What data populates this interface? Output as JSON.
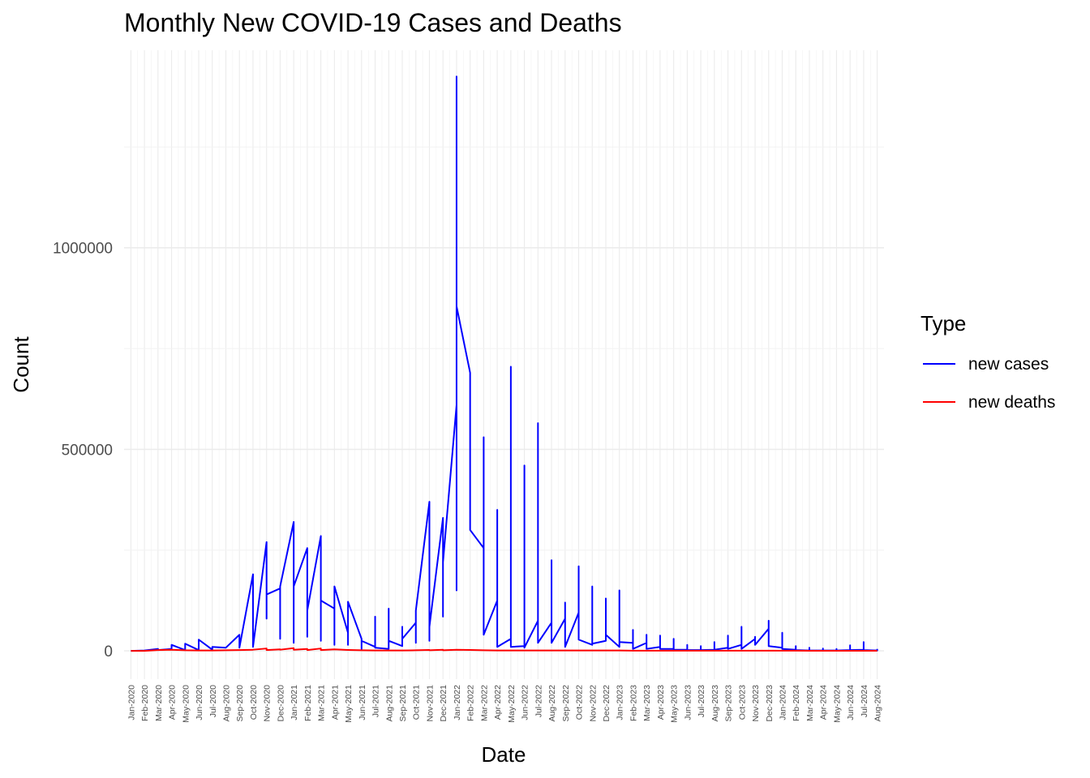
{
  "chart_data": {
    "type": "line",
    "title": "Monthly New COVID-19 Cases and Deaths",
    "xlabel": "Date",
    "ylabel": "Count",
    "ylim": [
      -70000,
      1490000
    ],
    "yticks": [
      0,
      500000,
      1000000
    ],
    "ytick_labels": [
      "0",
      "500000",
      "1000000"
    ],
    "grid": true,
    "legend": {
      "title": "Type",
      "placement": "right"
    },
    "categories": [
      "Jan-2020",
      "Feb-2020",
      "Mar-2020",
      "Apr-2020",
      "May-2020",
      "Jun-2020",
      "Jul-2020",
      "Aug-2020",
      "Sep-2020",
      "Oct-2020",
      "Nov-2020",
      "Dec-2020",
      "Jan-2021",
      "Feb-2021",
      "Mar-2021",
      "Apr-2021",
      "May-2021",
      "Jun-2021",
      "Jul-2021",
      "Aug-2021",
      "Sep-2021",
      "Oct-2021",
      "Nov-2021",
      "Dec-2021",
      "Jan-2022",
      "Feb-2022",
      "Mar-2022",
      "Apr-2022",
      "May-2022",
      "Jun-2022",
      "Jul-2022",
      "Aug-2022",
      "Sep-2022",
      "Oct-2022",
      "Nov-2022",
      "Dec-2022",
      "Jan-2023",
      "Feb-2023",
      "Mar-2023",
      "Apr-2023",
      "May-2023",
      "Jun-2023",
      "Jul-2023",
      "Aug-2023",
      "Sep-2023",
      "Oct-2023",
      "Nov-2023",
      "Dec-2023",
      "Jan-2024",
      "Feb-2024",
      "Mar-2024",
      "Apr-2024",
      "May-2024",
      "Jun-2024",
      "Jul-2024",
      "Aug-2024"
    ],
    "series": [
      {
        "name": "new cases",
        "color": "#0000ff",
        "points": [
          [
            "Jan-2020",
            0
          ],
          [
            "Feb-2020",
            1000
          ],
          [
            "Mar-2020",
            5000
          ],
          [
            "Mar-2020",
            2000
          ],
          [
            "Apr-2020",
            5000
          ],
          [
            "Apr-2020",
            15000
          ],
          [
            "May-2020",
            2000
          ],
          [
            "May-2020",
            18000
          ],
          [
            "Jun-2020",
            2000
          ],
          [
            "Jun-2020",
            28000
          ],
          [
            "Jul-2020",
            3000
          ],
          [
            "Jul-2020",
            10000
          ],
          [
            "Aug-2020",
            8000
          ],
          [
            "Sep-2020",
            40000
          ],
          [
            "Sep-2020",
            8000
          ],
          [
            "Oct-2020",
            190000
          ],
          [
            "Oct-2020",
            10000
          ],
          [
            "Nov-2020",
            270000
          ],
          [
            "Nov-2020",
            80000
          ],
          [
            "Nov-2020",
            140000
          ],
          [
            "Dec-2020",
            155000
          ],
          [
            "Dec-2020",
            30000
          ],
          [
            "Dec-2020",
            160000
          ],
          [
            "Jan-2021",
            320000
          ],
          [
            "Jan-2021",
            20000
          ],
          [
            "Jan-2021",
            160000
          ],
          [
            "Feb-2021",
            255000
          ],
          [
            "Feb-2021",
            35000
          ],
          [
            "Feb-2021",
            100000
          ],
          [
            "Mar-2021",
            285000
          ],
          [
            "Mar-2021",
            25000
          ],
          [
            "Mar-2021",
            125000
          ],
          [
            "Apr-2021",
            105000
          ],
          [
            "Apr-2021",
            15000
          ],
          [
            "Apr-2021",
            160000
          ],
          [
            "May-2021",
            45000
          ],
          [
            "May-2021",
            15000
          ],
          [
            "May-2021",
            122000
          ],
          [
            "Jun-2021",
            30000
          ],
          [
            "Jun-2021",
            5000
          ],
          [
            "Jun-2021",
            25000
          ],
          [
            "Jul-2021",
            10000
          ],
          [
            "Jul-2021",
            85000
          ],
          [
            "Jul-2021",
            8000
          ],
          [
            "Aug-2021",
            5000
          ],
          [
            "Aug-2021",
            105000
          ],
          [
            "Aug-2021",
            25000
          ],
          [
            "Sep-2021",
            12000
          ],
          [
            "Sep-2021",
            60000
          ],
          [
            "Sep-2021",
            30000
          ],
          [
            "Oct-2021",
            70000
          ],
          [
            "Oct-2021",
            20000
          ],
          [
            "Oct-2021",
            100000
          ],
          [
            "Nov-2021",
            370000
          ],
          [
            "Nov-2021",
            25000
          ],
          [
            "Nov-2021",
            60000
          ],
          [
            "Dec-2021",
            330000
          ],
          [
            "Dec-2021",
            85000
          ],
          [
            "Dec-2021",
            220000
          ],
          [
            "Jan-2022",
            610000
          ],
          [
            "Jan-2022",
            150000
          ],
          [
            "Jan-2022",
            1425000
          ],
          [
            "Jan-2022",
            855000
          ],
          [
            "Feb-2022",
            690000
          ],
          [
            "Feb-2022",
            420000
          ],
          [
            "Feb-2022",
            300000
          ],
          [
            "Mar-2022",
            255000
          ],
          [
            "Mar-2022",
            530000
          ],
          [
            "Mar-2022",
            40000
          ],
          [
            "Apr-2022",
            125000
          ],
          [
            "Apr-2022",
            350000
          ],
          [
            "Apr-2022",
            10000
          ],
          [
            "May-2022",
            30000
          ],
          [
            "May-2022",
            705000
          ],
          [
            "May-2022",
            10000
          ],
          [
            "Jun-2022",
            12000
          ],
          [
            "Jun-2022",
            460000
          ],
          [
            "Jun-2022",
            8000
          ],
          [
            "Jul-2022",
            75000
          ],
          [
            "Jul-2022",
            565000
          ],
          [
            "Jul-2022",
            20000
          ],
          [
            "Aug-2022",
            70000
          ],
          [
            "Aug-2022",
            225000
          ],
          [
            "Aug-2022",
            20000
          ],
          [
            "Sep-2022",
            80000
          ],
          [
            "Sep-2022",
            120000
          ],
          [
            "Sep-2022",
            10000
          ],
          [
            "Oct-2022",
            95000
          ],
          [
            "Oct-2022",
            210000
          ],
          [
            "Oct-2022",
            28000
          ],
          [
            "Nov-2022",
            15000
          ],
          [
            "Nov-2022",
            160000
          ],
          [
            "Nov-2022",
            18000
          ],
          [
            "Dec-2022",
            25000
          ],
          [
            "Dec-2022",
            130000
          ],
          [
            "Dec-2022",
            40000
          ],
          [
            "Jan-2023",
            10000
          ],
          [
            "Jan-2023",
            150000
          ],
          [
            "Jan-2023",
            22000
          ],
          [
            "Feb-2023",
            20000
          ],
          [
            "Feb-2023",
            52000
          ],
          [
            "Feb-2023",
            5000
          ],
          [
            "Mar-2023",
            20000
          ],
          [
            "Mar-2023",
            40000
          ],
          [
            "Mar-2023",
            5000
          ],
          [
            "Apr-2023",
            10000
          ],
          [
            "Apr-2023",
            38000
          ],
          [
            "Apr-2023",
            5000
          ],
          [
            "May-2023",
            5000
          ],
          [
            "May-2023",
            30000
          ],
          [
            "May-2023",
            3000
          ],
          [
            "Jun-2023",
            3000
          ],
          [
            "Jun-2023",
            15000
          ],
          [
            "Jun-2023",
            2000
          ],
          [
            "Jul-2023",
            2000
          ],
          [
            "Jul-2023",
            12000
          ],
          [
            "Jul-2023",
            2000
          ],
          [
            "Aug-2023",
            3000
          ],
          [
            "Aug-2023",
            22000
          ],
          [
            "Aug-2023",
            3000
          ],
          [
            "Sep-2023",
            8000
          ],
          [
            "Sep-2023",
            38000
          ],
          [
            "Sep-2023",
            5000
          ],
          [
            "Oct-2023",
            15000
          ],
          [
            "Oct-2023",
            60000
          ],
          [
            "Oct-2023",
            5000
          ],
          [
            "Nov-2023",
            30000
          ],
          [
            "Nov-2023",
            35000
          ],
          [
            "Nov-2023",
            15000
          ],
          [
            "Dec-2023",
            55000
          ],
          [
            "Dec-2023",
            75000
          ],
          [
            "Dec-2023",
            12000
          ],
          [
            "Jan-2024",
            8000
          ],
          [
            "Jan-2024",
            45000
          ],
          [
            "Jan-2024",
            5000
          ],
          [
            "Feb-2024",
            3000
          ],
          [
            "Feb-2024",
            12000
          ],
          [
            "Feb-2024",
            2000
          ],
          [
            "Mar-2024",
            1000
          ],
          [
            "Mar-2024",
            8000
          ],
          [
            "Mar-2024",
            1000
          ],
          [
            "Apr-2024",
            1000
          ],
          [
            "Apr-2024",
            6000
          ],
          [
            "Apr-2024",
            1000
          ],
          [
            "May-2024",
            1000
          ],
          [
            "May-2024",
            5000
          ],
          [
            "May-2024",
            1000
          ],
          [
            "Jun-2024",
            2000
          ],
          [
            "Jun-2024",
            14000
          ],
          [
            "Jun-2024",
            2000
          ],
          [
            "Jul-2024",
            3000
          ],
          [
            "Jul-2024",
            22000
          ],
          [
            "Jul-2024",
            2000
          ],
          [
            "Aug-2024",
            1000
          ],
          [
            "Aug-2024",
            5000
          ]
        ]
      },
      {
        "name": "new deaths",
        "color": "#ff0000",
        "points": [
          [
            "Jan-2020",
            0
          ],
          [
            "Feb-2020",
            0
          ],
          [
            "Mar-2020",
            2000
          ],
          [
            "Apr-2020",
            3000
          ],
          [
            "May-2020",
            1500
          ],
          [
            "Jun-2020",
            1000
          ],
          [
            "Jul-2020",
            1000
          ],
          [
            "Aug-2020",
            1500
          ],
          [
            "Sep-2020",
            2000
          ],
          [
            "Oct-2020",
            3000
          ],
          [
            "Nov-2020",
            6000
          ],
          [
            "Nov-2020",
            2000
          ],
          [
            "Dec-2020",
            4000
          ],
          [
            "Dec-2020",
            3000
          ],
          [
            "Jan-2021",
            7000
          ],
          [
            "Jan-2021",
            3000
          ],
          [
            "Feb-2021",
            5000
          ],
          [
            "Feb-2021",
            2000
          ],
          [
            "Mar-2021",
            6000
          ],
          [
            "Mar-2021",
            2000
          ],
          [
            "Apr-2021",
            4000
          ],
          [
            "May-2021",
            2500
          ],
          [
            "Jun-2021",
            1500
          ],
          [
            "Jul-2021",
            1000
          ],
          [
            "Aug-2021",
            1000
          ],
          [
            "Sep-2021",
            1000
          ],
          [
            "Oct-2021",
            1500
          ],
          [
            "Nov-2021",
            2500
          ],
          [
            "Nov-2021",
            1500
          ],
          [
            "Dec-2021",
            3000
          ],
          [
            "Dec-2021",
            1500
          ],
          [
            "Jan-2022",
            3000
          ],
          [
            "Feb-2022",
            2500
          ],
          [
            "Mar-2022",
            1500
          ],
          [
            "Apr-2022",
            1000
          ],
          [
            "May-2022",
            1000
          ],
          [
            "Jun-2022",
            1000
          ],
          [
            "Jul-2022",
            1000
          ],
          [
            "Aug-2022",
            1000
          ],
          [
            "Sep-2022",
            1000
          ],
          [
            "Oct-2022",
            1000
          ],
          [
            "Nov-2022",
            1000
          ],
          [
            "Dec-2022",
            1000
          ],
          [
            "Jan-2023",
            1000
          ],
          [
            "Feb-2023",
            500
          ],
          [
            "Mar-2023",
            500
          ],
          [
            "Apr-2023",
            500
          ],
          [
            "May-2023",
            500
          ],
          [
            "Jun-2023",
            500
          ],
          [
            "Jul-2023",
            500
          ],
          [
            "Aug-2023",
            500
          ],
          [
            "Sep-2023",
            500
          ],
          [
            "Oct-2023",
            500
          ],
          [
            "Nov-2023",
            500
          ],
          [
            "Dec-2023",
            500
          ],
          [
            "Jan-2024",
            500
          ],
          [
            "Feb-2024",
            500
          ],
          [
            "Mar-2024",
            300
          ],
          [
            "Apr-2024",
            300
          ],
          [
            "May-2024",
            300
          ],
          [
            "Jun-2024",
            300
          ],
          [
            "Jul-2024",
            300
          ],
          [
            "Aug-2024",
            300
          ]
        ]
      }
    ]
  }
}
